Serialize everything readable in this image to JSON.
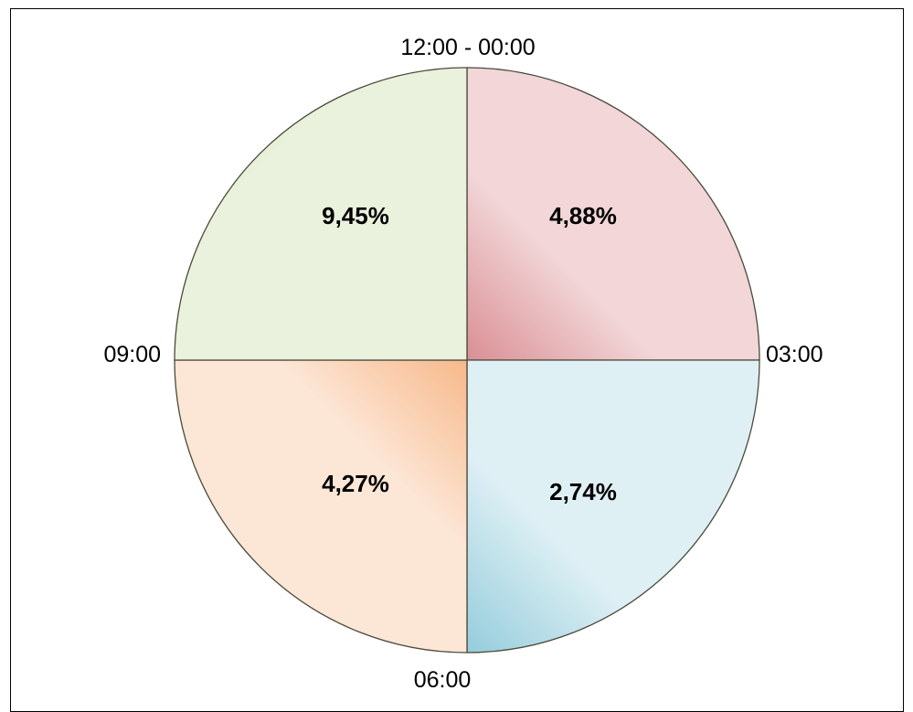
{
  "chart_data": {
    "type": "pie",
    "title": "",
    "direction_labels": {
      "top": "12:00 - 00:00",
      "right": "03:00",
      "bottom": "06:00",
      "left": "09:00"
    },
    "slices": [
      {
        "quadrant": "top-right",
        "label": "4,88%",
        "value": 4.88,
        "color": "#e7a8ad"
      },
      {
        "quadrant": "bottom-right",
        "label": "2,74%",
        "value": 2.74,
        "color": "#9fd2e0"
      },
      {
        "quadrant": "bottom-left",
        "label": "4,27%",
        "value": 4.27,
        "color": "#f7bd8f"
      },
      {
        "quadrant": "top-left",
        "label": "9,45%",
        "value": 9.45,
        "color": "#c3d69b"
      }
    ],
    "equal_angle_sectors": true,
    "grid": false,
    "legend": "none"
  }
}
